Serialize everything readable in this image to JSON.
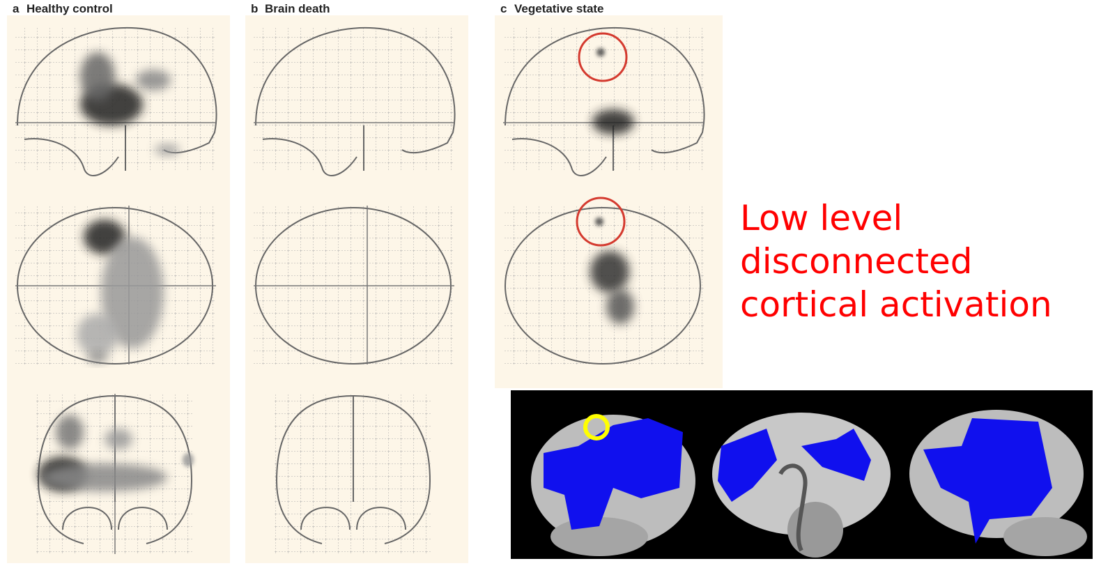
{
  "panels": [
    {
      "letter": "a",
      "title": "Healthy control"
    },
    {
      "letter": "b",
      "title": "Brain death"
    },
    {
      "letter": "c",
      "title": "Vegetative state"
    }
  ],
  "caption": {
    "lines": [
      "Low level",
      "disconnected",
      "cortical activation"
    ]
  }
}
